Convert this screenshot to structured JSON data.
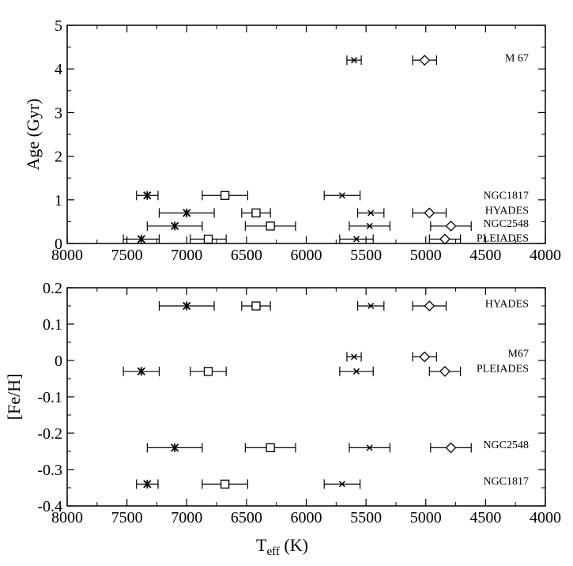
{
  "chart_data": [
    {
      "type": "scatter",
      "title": "",
      "xlabel": "",
      "ylabel": "Age (Gyr)",
      "xlim": [
        8000,
        4000
      ],
      "ylim": [
        0,
        5
      ],
      "x_ticks": [
        8000,
        7500,
        7000,
        6500,
        6000,
        5500,
        5000,
        4500,
        4000
      ],
      "y_ticks": [
        0,
        1,
        2,
        3,
        4,
        5
      ],
      "grid": false,
      "cluster_labels": [
        {
          "text": "M 67",
          "y": 4.25
        },
        {
          "text": "NGC1817",
          "y": 1.1
        },
        {
          "text": "HYADES",
          "y": 0.75
        },
        {
          "text": "NGC2548",
          "y": 0.45
        },
        {
          "text": "PLEIADES",
          "y": 0.12
        }
      ],
      "points": [
        {
          "cluster": "M 67",
          "marker": "x",
          "x": 5600,
          "y": 4.2,
          "xerr": 60
        },
        {
          "cluster": "M 67",
          "marker": "diamond",
          "x": 5010,
          "y": 4.2,
          "xerr": 100
        },
        {
          "cluster": "NGC1817",
          "marker": "asterisk",
          "x": 7330,
          "y": 1.1,
          "xerr": 90
        },
        {
          "cluster": "NGC1817",
          "marker": "square",
          "x": 6680,
          "y": 1.1,
          "xerr": 190
        },
        {
          "cluster": "NGC1817",
          "marker": "x",
          "x": 5700,
          "y": 1.1,
          "xerr": 150
        },
        {
          "cluster": "HYADES",
          "marker": "asterisk",
          "x": 7000,
          "y": 0.7,
          "xerr": 230
        },
        {
          "cluster": "HYADES",
          "marker": "square",
          "x": 6420,
          "y": 0.7,
          "xerr": 120
        },
        {
          "cluster": "HYADES",
          "marker": "x",
          "x": 5460,
          "y": 0.7,
          "xerr": 110
        },
        {
          "cluster": "HYADES",
          "marker": "diamond",
          "x": 4970,
          "y": 0.7,
          "xerr": 140
        },
        {
          "cluster": "NGC2548",
          "marker": "asterisk",
          "x": 7100,
          "y": 0.4,
          "xerr": 230
        },
        {
          "cluster": "NGC2548",
          "marker": "square",
          "x": 6300,
          "y": 0.4,
          "xerr": 210
        },
        {
          "cluster": "NGC2548",
          "marker": "x",
          "x": 5470,
          "y": 0.4,
          "xerr": 170
        },
        {
          "cluster": "NGC2548",
          "marker": "diamond",
          "x": 4790,
          "y": 0.4,
          "xerr": 170
        },
        {
          "cluster": "PLEIADES",
          "marker": "asterisk",
          "x": 7380,
          "y": 0.1,
          "xerr": 150
        },
        {
          "cluster": "PLEIADES",
          "marker": "square",
          "x": 6820,
          "y": 0.1,
          "xerr": 150
        },
        {
          "cluster": "PLEIADES",
          "marker": "x",
          "x": 5580,
          "y": 0.1,
          "xerr": 140
        },
        {
          "cluster": "PLEIADES",
          "marker": "diamond",
          "x": 4840,
          "y": 0.1,
          "xerr": 130
        }
      ]
    },
    {
      "type": "scatter",
      "title": "",
      "xlabel_main": "T",
      "xlabel_sub": "eff",
      "xlabel_unit": " (K)",
      "ylabel": "[Fe/H]",
      "xlim": [
        8000,
        4000
      ],
      "ylim": [
        -0.4,
        0.2
      ],
      "x_ticks": [
        8000,
        7500,
        7000,
        6500,
        6000,
        5500,
        5000,
        4500,
        4000
      ],
      "y_ticks": [
        -0.4,
        -0.3,
        -0.2,
        -0.1,
        0,
        0.1,
        0.2
      ],
      "y_tick_labels": [
        "-0.4",
        "-0.3",
        "-0.2",
        "-0.1",
        "0",
        "0.1",
        "0.2"
      ],
      "grid": false,
      "cluster_labels": [
        {
          "text": "HYADES",
          "y": 0.155
        },
        {
          "text": "M67",
          "y": 0.018
        },
        {
          "text": "PLEIADES",
          "y": -0.023
        },
        {
          "text": "NGC2548",
          "y": -0.233
        },
        {
          "text": "NGC1817",
          "y": -0.333
        }
      ],
      "points": [
        {
          "cluster": "HYADES",
          "marker": "asterisk",
          "x": 7000,
          "y": 0.15,
          "xerr": 230
        },
        {
          "cluster": "HYADES",
          "marker": "square",
          "x": 6420,
          "y": 0.15,
          "xerr": 120
        },
        {
          "cluster": "HYADES",
          "marker": "x",
          "x": 5460,
          "y": 0.15,
          "xerr": 110
        },
        {
          "cluster": "HYADES",
          "marker": "diamond",
          "x": 4970,
          "y": 0.15,
          "xerr": 140
        },
        {
          "cluster": "M67",
          "marker": "x",
          "x": 5600,
          "y": 0.01,
          "xerr": 60
        },
        {
          "cluster": "M67",
          "marker": "diamond",
          "x": 5010,
          "y": 0.01,
          "xerr": 100
        },
        {
          "cluster": "PLEIADES",
          "marker": "asterisk",
          "x": 7380,
          "y": -0.03,
          "xerr": 150
        },
        {
          "cluster": "PLEIADES",
          "marker": "square",
          "x": 6820,
          "y": -0.03,
          "xerr": 150
        },
        {
          "cluster": "PLEIADES",
          "marker": "x",
          "x": 5580,
          "y": -0.03,
          "xerr": 140
        },
        {
          "cluster": "PLEIADES",
          "marker": "diamond",
          "x": 4840,
          "y": -0.03,
          "xerr": 130
        },
        {
          "cluster": "NGC2548",
          "marker": "asterisk",
          "x": 7100,
          "y": -0.24,
          "xerr": 230
        },
        {
          "cluster": "NGC2548",
          "marker": "square",
          "x": 6300,
          "y": -0.24,
          "xerr": 210
        },
        {
          "cluster": "NGC2548",
          "marker": "x",
          "x": 5470,
          "y": -0.24,
          "xerr": 170
        },
        {
          "cluster": "NGC2548",
          "marker": "diamond",
          "x": 4790,
          "y": -0.24,
          "xerr": 170
        },
        {
          "cluster": "NGC1817",
          "marker": "asterisk",
          "x": 7330,
          "y": -0.34,
          "xerr": 90
        },
        {
          "cluster": "NGC1817",
          "marker": "square",
          "x": 6680,
          "y": -0.34,
          "xerr": 190
        },
        {
          "cluster": "NGC1817",
          "marker": "x",
          "x": 5700,
          "y": -0.34,
          "xerr": 150
        }
      ]
    }
  ]
}
